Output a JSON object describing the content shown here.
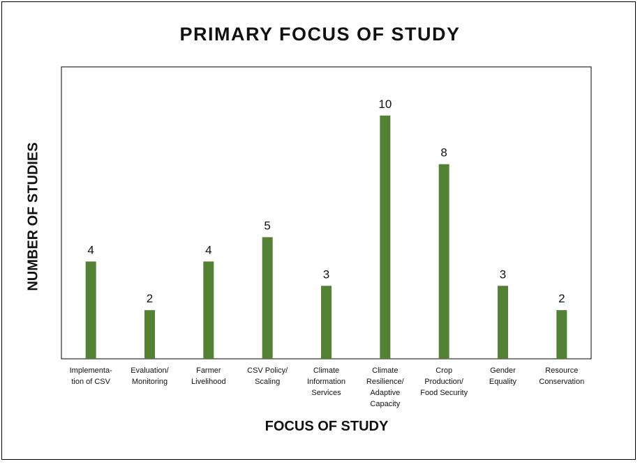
{
  "chart_data": {
    "type": "bar",
    "title": "PRIMARY FOCUS OF STUDY",
    "xlabel": "FOCUS OF STUDY",
    "ylabel": "NUMBER OF STUDIES",
    "categories": [
      [
        "Implementa-",
        "tion of CSV"
      ],
      [
        "Evaluation/",
        "Monitoring"
      ],
      [
        "Farmer",
        "Livelihood"
      ],
      [
        "CSV Policy/",
        "Scaling"
      ],
      [
        "Climate",
        "Information",
        "Services"
      ],
      [
        "Climate",
        "Resilience/",
        "Adaptive",
        "Capacity"
      ],
      [
        "Crop",
        "Production/",
        "Food Security"
      ],
      [
        "Gender",
        "Equality"
      ],
      [
        "Resource",
        "Conservation"
      ]
    ],
    "values": [
      4,
      2,
      4,
      5,
      3,
      10,
      8,
      3,
      2
    ],
    "ylim": [
      0,
      12
    ],
    "grid": false,
    "legend": "none",
    "bar_color": "#548235"
  }
}
